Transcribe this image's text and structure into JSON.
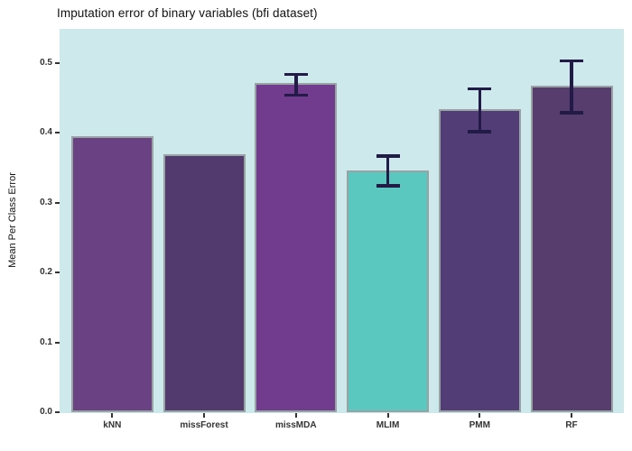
{
  "chart_data": {
    "type": "bar",
    "title": "Imputation error of binary variables (bfi dataset)",
    "xlabel": "",
    "ylabel": "Mean Per Class Error",
    "categories": [
      "kNN",
      "missForest",
      "missMDA",
      "MLIM",
      "PMM",
      "RF"
    ],
    "values": [
      0.394,
      0.368,
      0.47,
      0.345,
      0.433,
      0.466
    ],
    "error_low": [
      null,
      null,
      0.455,
      0.325,
      0.403,
      0.43
    ],
    "error_high": [
      null,
      null,
      0.483,
      0.366,
      0.462,
      0.502
    ],
    "bar_colors": [
      "#6a4183",
      "#523a6e",
      "#713c8e",
      "#5bc8bf",
      "#533d77",
      "#563d6d"
    ],
    "yticks": [
      0.0,
      0.1,
      0.2,
      0.3,
      0.4,
      0.5
    ],
    "ytick_labels": [
      "0.0",
      "0.1",
      "0.2",
      "0.3",
      "0.4",
      "0.5"
    ],
    "ylim": [
      0,
      0.55
    ],
    "grid": false,
    "legend": "none",
    "colors": {
      "panel_bg": "#cde9eb",
      "bar_border": "#9aa3a3",
      "errorbar": "#221a47",
      "axis_text": "#333333",
      "title_text": "#111111",
      "page_bg": "#ffffff"
    }
  }
}
